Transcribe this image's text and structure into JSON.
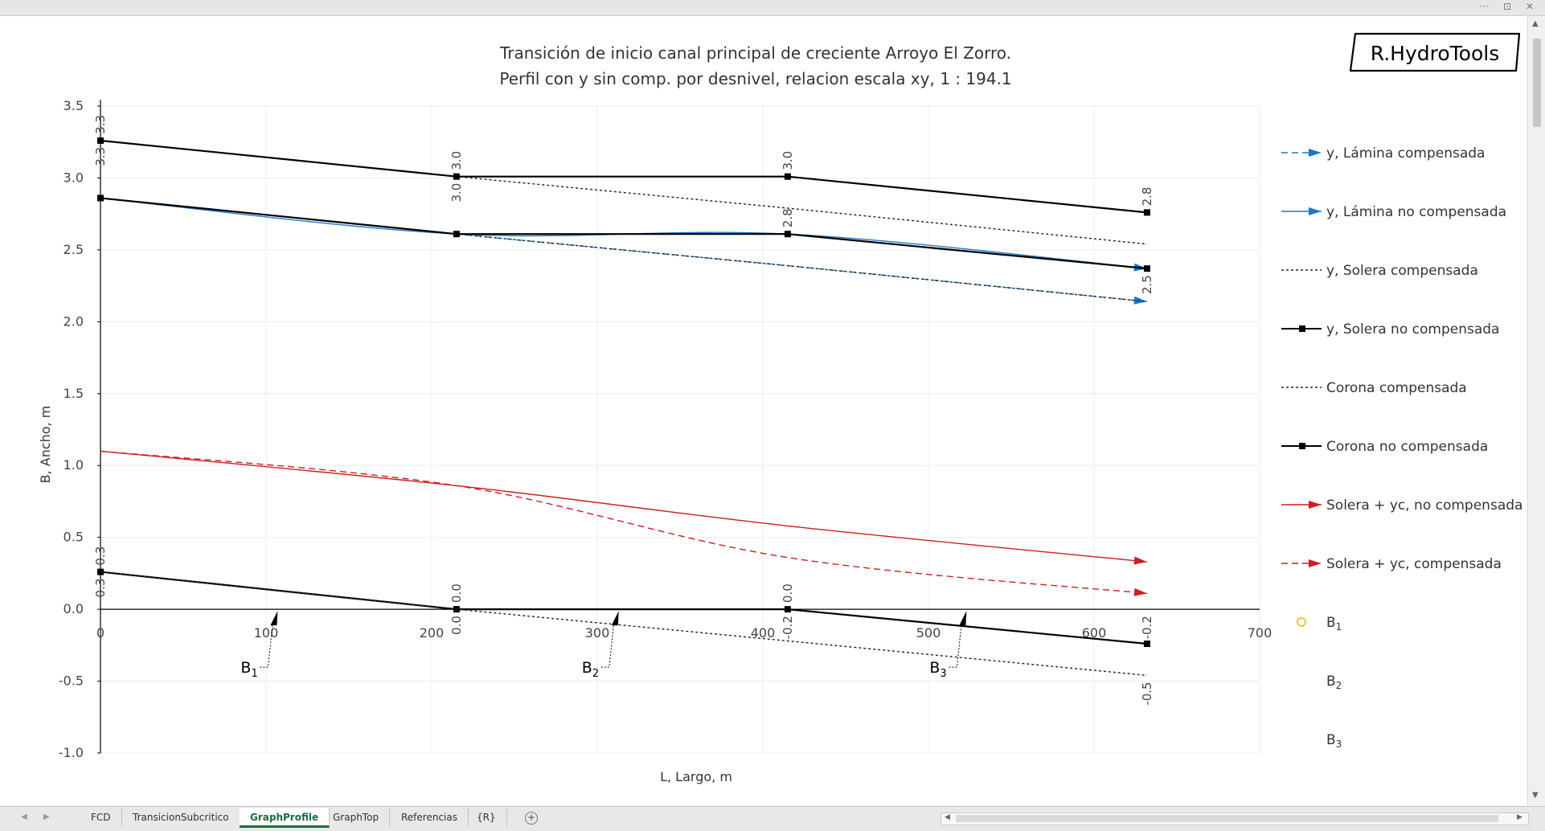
{
  "logo": "R.HydroTools",
  "window_controls": [
    "···",
    "⊡",
    "✕"
  ],
  "chart_data": {
    "type": "line",
    "title": "Transición de inicio canal principal de creciente Arroyo El Zorro.",
    "subtitle": "Perfil con y sin comp. por desnivel, relacion escala xy,  1 : 194.1",
    "xlabel": "L, Largo, m",
    "ylabel": "B, Ancho, m",
    "xlim": [
      0,
      700
    ],
    "ylim": [
      -1.0,
      3.5
    ],
    "xticks": [
      0,
      100,
      200,
      300,
      400,
      500,
      600,
      700
    ],
    "yticks": [
      3.5,
      3.0,
      2.5,
      2.0,
      1.5,
      1.0,
      0.5,
      0.0,
      -0.5,
      -1.0
    ],
    "x_tick_labels": [
      "0",
      "100",
      "200",
      "300",
      "400",
      "500",
      "600",
      "700"
    ],
    "y_tick_labels": [
      "3.5",
      "3.0",
      "2.5",
      "2.0",
      "1.5",
      "1.0",
      "0.5",
      "0.0",
      "-0.5",
      "-1.0"
    ],
    "grid": true,
    "legend_position": "right",
    "series": [
      {
        "name": "y, Lámina compensada",
        "color": "#1f77c8",
        "dash": "dashed",
        "marker": "arrow",
        "x": [
          0,
          215,
          415,
          632
        ],
        "y": [
          2.86,
          2.61,
          2.39,
          2.14
        ]
      },
      {
        "name": "y, Lámina no compensada",
        "color": "#1f77c8",
        "dash": "solid",
        "marker": "arrow",
        "x": [
          0,
          215,
          415,
          632
        ],
        "y": [
          2.86,
          2.61,
          2.61,
          2.37
        ]
      },
      {
        "name": "y, Solera compensada",
        "color": "#222222",
        "dash": "dotted",
        "marker": "none",
        "x": [
          0,
          215,
          415,
          632
        ],
        "y": [
          2.86,
          2.61,
          2.39,
          2.14
        ]
      },
      {
        "name": "y, Solera no compensada",
        "color": "#000000",
        "dash": "solid",
        "marker": "square",
        "x": [
          0,
          215,
          415,
          632
        ],
        "y": [
          2.86,
          2.61,
          2.61,
          2.37
        ]
      },
      {
        "name": "Corona compensada",
        "color": "#222222",
        "dash": "dotted",
        "marker": "none",
        "x": [
          0,
          215,
          415,
          632
        ],
        "y": [
          3.26,
          3.01,
          2.79,
          2.54
        ]
      },
      {
        "name": "Corona no compensada",
        "color": "#000000",
        "dash": "solid",
        "marker": "square",
        "x": [
          0,
          215,
          415,
          632
        ],
        "y": [
          3.26,
          3.01,
          3.01,
          2.76
        ]
      },
      {
        "name": "Solera + yc, no compensada",
        "color": "#cc1f1f",
        "dash": "solid",
        "marker": "arrow",
        "x": [
          0,
          215,
          415,
          632
        ],
        "y": [
          1.1,
          0.86,
          0.58,
          0.33
        ]
      },
      {
        "name": "Solera + yc, compensada",
        "color": "#cc1f1f",
        "dash": "dashed",
        "marker": "arrow",
        "x": [
          0,
          215,
          415,
          632
        ],
        "y": [
          1.1,
          0.86,
          0.36,
          0.11
        ]
      }
    ],
    "lower_lines": [
      {
        "color": "#000000",
        "dash": "solid",
        "marker": "square",
        "x": [
          0,
          215,
          415,
          632
        ],
        "y": [
          0.26,
          0.0,
          0.0,
          -0.24
        ]
      },
      {
        "color": "#222222",
        "dash": "dotted",
        "marker": "none",
        "x": [
          0,
          215,
          415,
          632
        ],
        "y": [
          0.26,
          0.0,
          -0.22,
          -0.46
        ]
      }
    ],
    "data_labels": [
      {
        "text": "3.3",
        "x": 0,
        "y": 3.26,
        "side": "above"
      },
      {
        "text": "3.3",
        "x": 0,
        "y": 3.26,
        "side": "below"
      },
      {
        "text": "3.0",
        "x": 215,
        "y": 3.01,
        "side": "above"
      },
      {
        "text": "3.0",
        "x": 215,
        "y": 3.01,
        "side": "below"
      },
      {
        "text": "3.0",
        "x": 415,
        "y": 3.01,
        "side": "above"
      },
      {
        "text": "2.8",
        "x": 632,
        "y": 2.76,
        "side": "above"
      },
      {
        "text": "2.8",
        "x": 415,
        "y": 2.61,
        "side": "above"
      },
      {
        "text": "2.5",
        "x": 632,
        "y": 2.37,
        "side": "below"
      },
      {
        "text": "0.3",
        "x": 0,
        "y": 0.26,
        "side": "above"
      },
      {
        "text": "0.3",
        "x": 0,
        "y": 0.26,
        "side": "below"
      },
      {
        "text": "0.0",
        "x": 215,
        "y": 0.0,
        "side": "above"
      },
      {
        "text": "0.0",
        "x": 215,
        "y": 0.0,
        "side": "below"
      },
      {
        "text": "0.0",
        "x": 415,
        "y": 0.0,
        "side": "above"
      },
      {
        "text": "-0.2",
        "x": 415,
        "y": 0.0,
        "side": "below"
      },
      {
        "text": "-0.2",
        "x": 632,
        "y": 0.0,
        "side": "below"
      },
      {
        "text": "-0.5",
        "x": 632,
        "y": -0.46,
        "side": "below"
      }
    ],
    "b_markers": [
      {
        "name": "B",
        "sub": "1",
        "x": 107,
        "y": 0.0
      },
      {
        "name": "B",
        "sub": "2",
        "x": 313,
        "y": 0.0
      },
      {
        "name": "B",
        "sub": "3",
        "x": 523,
        "y": 0.0
      }
    ],
    "legend_extra": [
      {
        "name": "B",
        "sub": "1",
        "marker": "circle",
        "color": "#f2b705"
      },
      {
        "name": "B",
        "sub": "2",
        "marker": "none",
        "color": ""
      },
      {
        "name": "B",
        "sub": "3",
        "marker": "none",
        "color": ""
      }
    ]
  },
  "sheet_tabs": [
    {
      "label": "FCD",
      "active": false
    },
    {
      "label": "TransicionSubcritico",
      "active": false
    },
    {
      "label": "GraphProfile",
      "active": true
    },
    {
      "label": "GraphTop",
      "active": false
    },
    {
      "label": "Referencias",
      "active": false
    },
    {
      "label": "{R}",
      "active": false
    }
  ],
  "add_sheet_label": "+"
}
